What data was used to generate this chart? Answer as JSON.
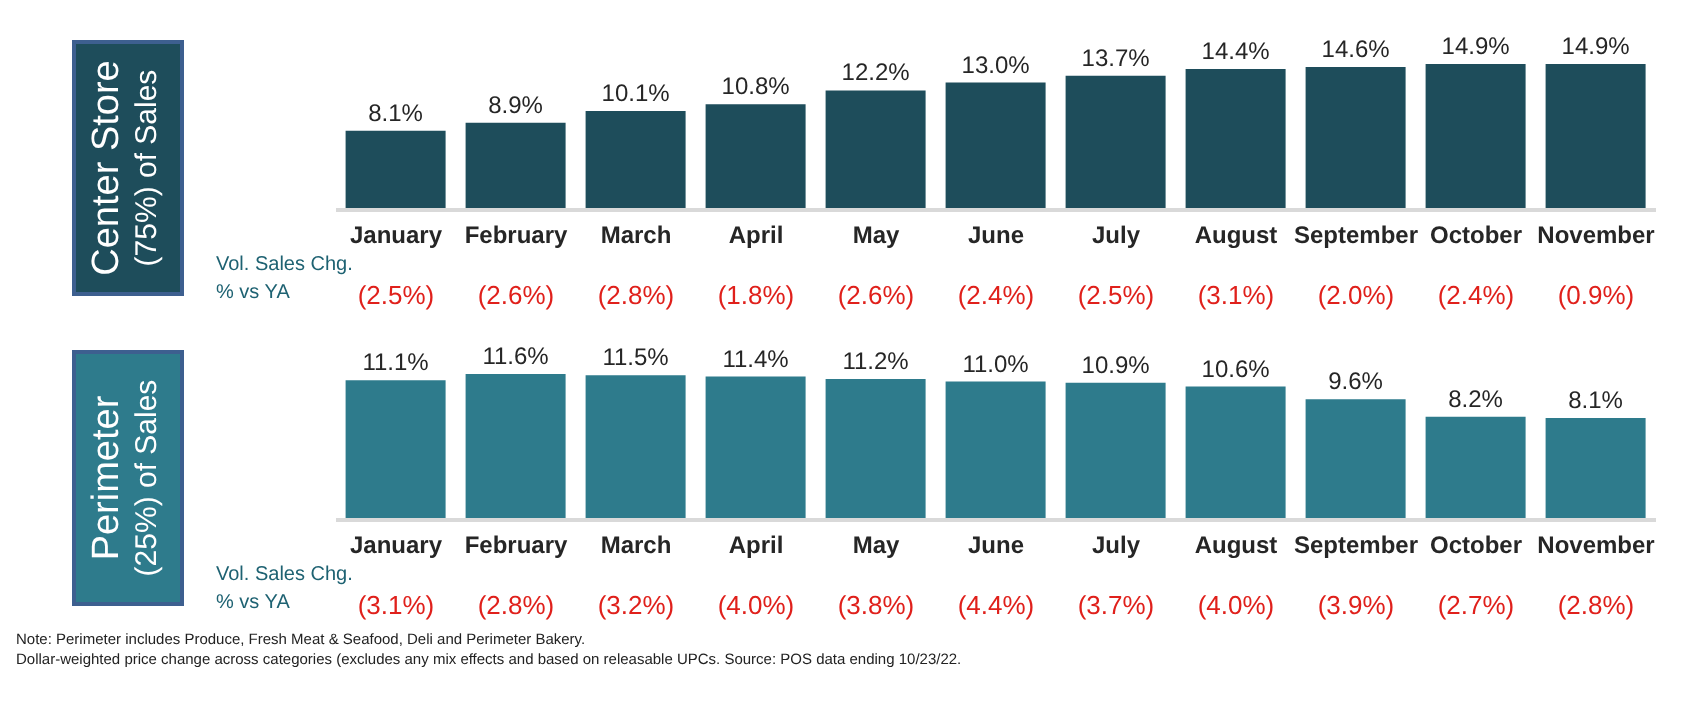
{
  "chart_data": [
    {
      "type": "bar",
      "title": "Center Store",
      "subtitle": "(75%) of Sales",
      "color": "#1e4d5b",
      "tick_labels": "x",
      "grid": false,
      "legend": false,
      "categories": [
        "January",
        "February",
        "March",
        "April",
        "May",
        "June",
        "July",
        "August",
        "September",
        "October",
        "November"
      ],
      "values": [
        8.1,
        8.9,
        10.1,
        10.8,
        12.2,
        13.0,
        13.7,
        14.4,
        14.6,
        14.9,
        14.9
      ],
      "value_labels": [
        "8.1%",
        "8.9%",
        "10.1%",
        "10.8%",
        "12.2%",
        "13.0%",
        "13.7%",
        "14.4%",
        "14.6%",
        "14.9%",
        "14.9%"
      ],
      "annotations": [
        "Vol. Sales Chg. % vs YA",
        "(2.5%)",
        "(2.6%)",
        "(2.8%)",
        "(1.8%)",
        "(2.6%)",
        "(2.4%)",
        "(2.5%)",
        "(3.1%)",
        "(2.0%)",
        "(2.4%)",
        "(0.9%)"
      ]
    },
    {
      "type": "bar",
      "title": "Perimeter",
      "subtitle": "(25%) of Sales",
      "color": "#2e7b8c",
      "tick_labels": "x",
      "grid": false,
      "legend": false,
      "categories": [
        "January",
        "February",
        "March",
        "April",
        "May",
        "June",
        "July",
        "August",
        "September",
        "October",
        "November"
      ],
      "values": [
        11.1,
        11.6,
        11.5,
        11.4,
        11.2,
        11.0,
        10.9,
        10.6,
        9.6,
        8.2,
        8.1
      ],
      "value_labels": [
        "11.1%",
        "11.6%",
        "11.5%",
        "11.4%",
        "11.2%",
        "11.0%",
        "10.9%",
        "10.6%",
        "9.6%",
        "8.2%",
        "8.1%"
      ],
      "annotations": [
        "Vol. Sales Chg. % vs YA",
        "(3.1%)",
        "(2.8%)",
        "(3.2%)",
        "(4.0%)",
        "(3.8%)",
        "(4.4%)",
        "(3.7%)",
        "(4.0%)",
        "(3.9%)",
        "(2.7%)",
        "(2.8%)",
        "Note: Perimeter includes Produce, Fresh Meat & Seafood, Deli and Perimeter Bakery.",
        "Dollar-weighted price change across categories (excludes any mix effects and based on releasable UPCs. Source: POS data ending 10/23/22."
      ]
    }
  ]
}
